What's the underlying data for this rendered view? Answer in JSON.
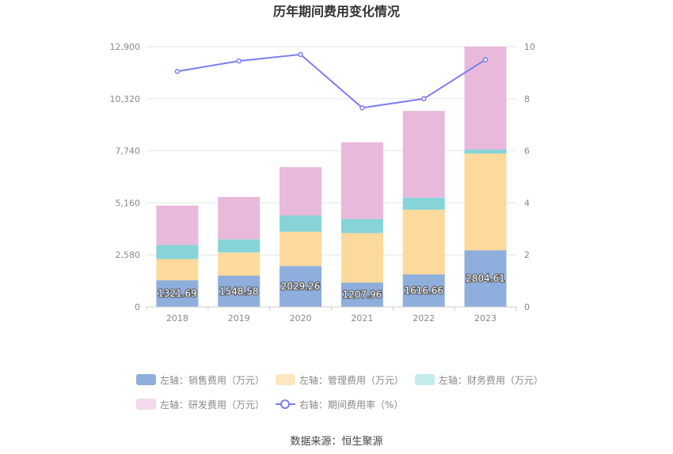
{
  "chart_data": {
    "type": "bar",
    "title": "历年期间费用变化情况",
    "categories": [
      "2018",
      "2019",
      "2020",
      "2021",
      "2022",
      "2023"
    ],
    "y_left": {
      "min": 0,
      "max": 12900,
      "ticks": [
        "0",
        "2,580",
        "5,160",
        "7,740",
        "10,320",
        "12,900"
      ]
    },
    "y_right": {
      "min": 0,
      "max": 10,
      "ticks": [
        "0",
        "2",
        "4",
        "6",
        "8",
        "10"
      ]
    },
    "series": [
      {
        "name": "左轴：销售费用（万元）",
        "axis": "left",
        "stack": true,
        "color": "#8eaedc",
        "values": [
          1321.69,
          1548.58,
          2029.26,
          1207.96,
          1616.66,
          2804.61
        ],
        "labels": [
          "1321.69",
          "1548.58",
          "2029.26",
          "1207.96",
          "1616.66",
          "2804.61"
        ]
      },
      {
        "name": "左轴：管理费用（万元）",
        "axis": "left",
        "stack": true,
        "color": "#fdd99b",
        "values": [
          1050,
          1150,
          1700,
          2450,
          3200,
          4800
        ]
      },
      {
        "name": "左轴：财务费用（万元）",
        "axis": "left",
        "stack": true,
        "color": "#86d4d8",
        "values": [
          700,
          650,
          800,
          700,
          600,
          200
        ]
      },
      {
        "name": "左轴：研发费用（万元）",
        "axis": "left",
        "stack": true,
        "color": "#e8b9da",
        "values": [
          1950,
          2100,
          2400,
          3800,
          4300,
          5100
        ]
      },
      {
        "name": "右轴：期间费用率（%）",
        "axis": "right",
        "type": "line",
        "color": "#7b7cf0",
        "values": [
          9.05,
          9.45,
          9.7,
          7.65,
          8.0,
          9.5
        ]
      }
    ],
    "legend_position": "bottom",
    "grid": true
  },
  "legend": {
    "row1": [
      "左轴：销售费用（万元）",
      "左轴：管理费用（万元）",
      "左轴：财务费用（万元）"
    ],
    "row2": [
      "左轴：研发费用（万元）",
      "右轴：期间费用率（%）"
    ],
    "colors": [
      "#8eaedc",
      "#fde7c2",
      "#c2ecec",
      "#f3d9ec"
    ]
  },
  "source": "数据来源：恒生聚源"
}
